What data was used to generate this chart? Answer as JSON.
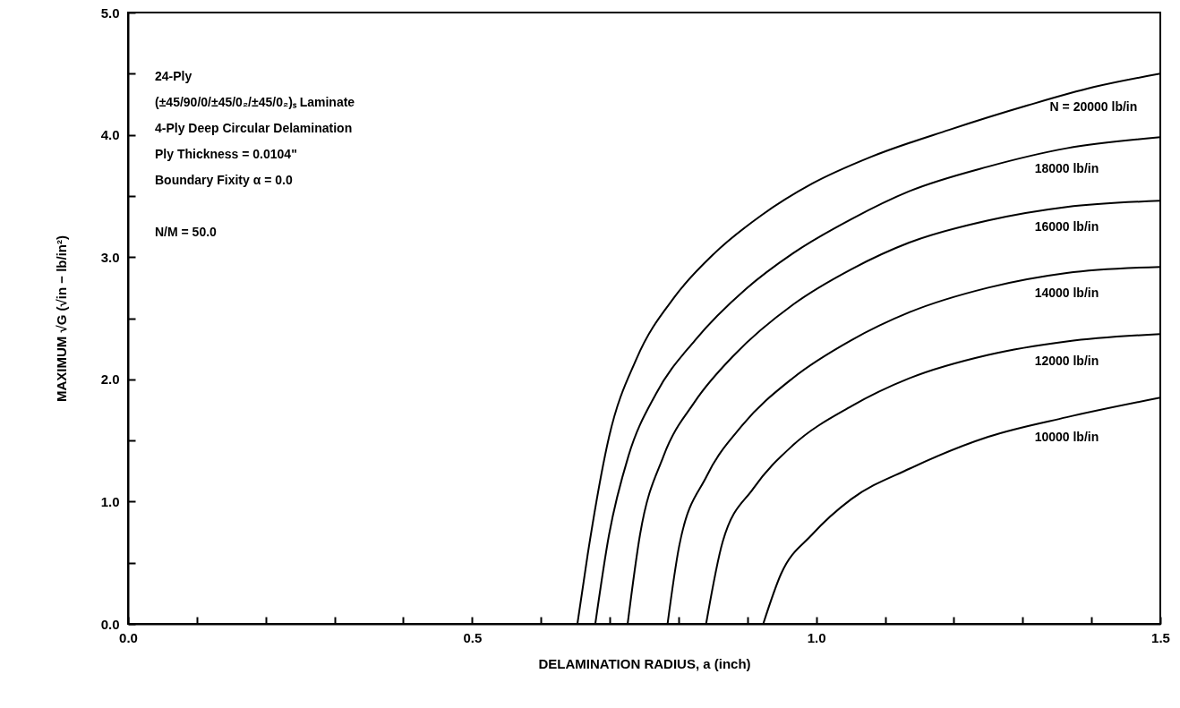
{
  "chart_data": {
    "type": "line",
    "xlabel": "DELAMINATION RADIUS, a (inch)",
    "ylabel": "MAXIMUM  √G  (√in − lb/in²)",
    "xlim": [
      0,
      1.5
    ],
    "ylim": [
      0,
      5
    ],
    "xticks": [
      {
        "value": 0,
        "label": "0.0"
      },
      {
        "value": 0.1,
        "label": null
      },
      {
        "value": 0.2,
        "label": null
      },
      {
        "value": 0.3,
        "label": null
      },
      {
        "value": 0.4,
        "label": null
      },
      {
        "value": 0.5,
        "label": "0.5"
      },
      {
        "value": 0.6,
        "label": null
      },
      {
        "value": 0.7,
        "label": null
      },
      {
        "value": 0.8,
        "label": null
      },
      {
        "value": 0.9,
        "label": null
      },
      {
        "value": 1.0,
        "label": "1.0"
      },
      {
        "value": 1.1,
        "label": null
      },
      {
        "value": 1.2,
        "label": null
      },
      {
        "value": 1.3,
        "label": null
      },
      {
        "value": 1.4,
        "label": null
      },
      {
        "value": 1.5,
        "label": "1.5"
      }
    ],
    "yticks": [
      {
        "value": 0,
        "label": "0.0"
      },
      {
        "value": 0.5,
        "label": null
      },
      {
        "value": 1,
        "label": "1.0"
      },
      {
        "value": 1.5,
        "label": null
      },
      {
        "value": 2,
        "label": "2.0"
      },
      {
        "value": 2.5,
        "label": null
      },
      {
        "value": 3,
        "label": "3.0"
      },
      {
        "value": 3.5,
        "label": null
      },
      {
        "value": 4,
        "label": "4.0"
      },
      {
        "value": 4.5,
        "label": null
      },
      {
        "value": 5,
        "label": "5.0"
      }
    ],
    "grid": false,
    "marker": "none",
    "line_style": "solid",
    "series": [
      {
        "name": "N = 20000 lb/in",
        "color": "#000000",
        "x": [
          0.653,
          0.668,
          0.699,
          0.739,
          0.795,
          0.852,
          0.92,
          0.994,
          1.08,
          1.193,
          1.307,
          1.403,
          1.5
        ],
        "values": [
          0,
          0.57,
          1.53,
          2.17,
          2.68,
          3.03,
          3.34,
          3.6,
          3.82,
          4.04,
          4.24,
          4.39,
          4.5
        ]
      },
      {
        "name": "18000 lb/in",
        "color": "#000000",
        "x": [
          0.679,
          0.699,
          0.727,
          0.767,
          0.824,
          0.898,
          0.966,
          1.051,
          1.136,
          1.25,
          1.364,
          1.5
        ],
        "values": [
          0,
          0.73,
          1.37,
          1.88,
          2.32,
          2.74,
          3.03,
          3.31,
          3.54,
          3.74,
          3.89,
          3.98
        ]
      },
      {
        "name": "16000 lb/in",
        "color": "#000000",
        "x": [
          0.726,
          0.744,
          0.778,
          0.824,
          0.881,
          0.966,
          1.051,
          1.136,
          1.25,
          1.364,
          1.5
        ],
        "values": [
          0,
          0.73,
          1.37,
          1.82,
          2.2,
          2.61,
          2.9,
          3.12,
          3.3,
          3.41,
          3.46
        ]
      },
      {
        "name": "14000 lb/in",
        "color": "#000000",
        "x": [
          0.784,
          0.801,
          0.841,
          0.892,
          0.966,
          1.051,
          1.136,
          1.25,
          1.364,
          1.5
        ],
        "values": [
          0,
          0.64,
          1.21,
          1.62,
          2.01,
          2.32,
          2.55,
          2.75,
          2.87,
          2.92
        ]
      },
      {
        "name": "12000 lb/in",
        "color": "#000000",
        "x": [
          0.84,
          0.864,
          0.909,
          0.966,
          1.051,
          1.136,
          1.25,
          1.364,
          1.5
        ],
        "values": [
          0,
          0.67,
          1.11,
          1.46,
          1.78,
          2.01,
          2.2,
          2.31,
          2.37
        ]
      },
      {
        "name": "10000 lb/in",
        "color": "#000000",
        "x": [
          0.923,
          0.949,
          0.994,
          1.051,
          1.136,
          1.25,
          1.364,
          1.5
        ],
        "values": [
          0,
          0.41,
          0.73,
          1.02,
          1.27,
          1.53,
          1.69,
          1.85
        ]
      }
    ],
    "annotations": [
      "24-Ply",
      "(±45/90/0/±45/0₂/±45/0₂)ₛ  Laminate",
      "4-Ply Deep Circular Delamination",
      "Ply Thickness = 0.0104\"",
      "Boundary Fixity  α = 0.0",
      "N/M = 50.0"
    ]
  }
}
